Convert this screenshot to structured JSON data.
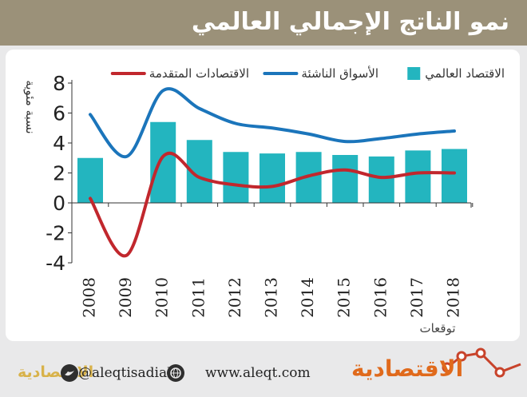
{
  "header": {
    "title": "نمو الناتج الإجمالي العالمي"
  },
  "chart_data": {
    "type": "bar+line",
    "categories": [
      "2008",
      "2009",
      "2010",
      "2011",
      "2012",
      "2013",
      "2014",
      "2015",
      "2016",
      "2017",
      "2018"
    ],
    "series": [
      {
        "name": "الاقتصاد العالمي",
        "kind": "bar",
        "color": "#23b5bf",
        "values": [
          3.0,
          null,
          5.4,
          4.2,
          3.4,
          3.3,
          3.4,
          3.2,
          3.1,
          3.5,
          3.6
        ]
      },
      {
        "name": "الأسواق الناشئة",
        "kind": "line",
        "color": "#1b75bb",
        "values": [
          5.9,
          3.1,
          7.5,
          6.3,
          5.3,
          5.0,
          4.6,
          4.1,
          4.3,
          4.6,
          4.8
        ]
      },
      {
        "name": "الاقتصادات المتقدمة",
        "kind": "line",
        "color": "#c1272d",
        "values": [
          0.3,
          -3.5,
          3.1,
          1.7,
          1.2,
          1.1,
          1.8,
          2.2,
          1.7,
          2.0,
          2.0
        ]
      }
    ],
    "ylabel": "نسبة مئوية",
    "ylim": [
      -4,
      8
    ],
    "yticks": [
      "8",
      "6",
      "4",
      "2",
      "0",
      "-2",
      "-4"
    ],
    "xnote": "توقعات",
    "grid": false,
    "legend": "top"
  },
  "footer": {
    "handle": "@aleqtisadiah",
    "website": "www.aleqt.com",
    "brand": "الاقتصادية",
    "brand_small": "الاقتصادية"
  },
  "colors": {
    "header_bg": "#9b9179",
    "brand": "#e06a1c",
    "footer_line": "#c8432b"
  }
}
